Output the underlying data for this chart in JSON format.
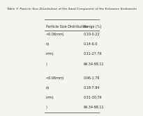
{
  "title": "Table 3: Particle Size Distribution of the Sand Component of the Estuarine Sediments",
  "col1_header": "Particle Size Distribution",
  "col2_header": "Range (%)",
  "group1": [
    [
      "<0.06mm)",
      "0.10-0.22"
    ],
    [
      "n)",
      "0.14-6.0"
    ],
    [
      "mm)",
      "0.31-27.76"
    ],
    [
      ")",
      "64.34-98.11"
    ]
  ],
  "group2": [
    [
      "<0.06mm)",
      "0.06-1.76"
    ],
    [
      "n)",
      "0.18-7.84"
    ],
    [
      "mm)",
      "0.31-30.76"
    ],
    [
      ")",
      "64.34-98.11"
    ]
  ],
  "bg_color": "#f5f5f0",
  "header_line_color": "#555555",
  "text_color": "#222222",
  "font_size": 3.5,
  "title_font_size": 3.2
}
